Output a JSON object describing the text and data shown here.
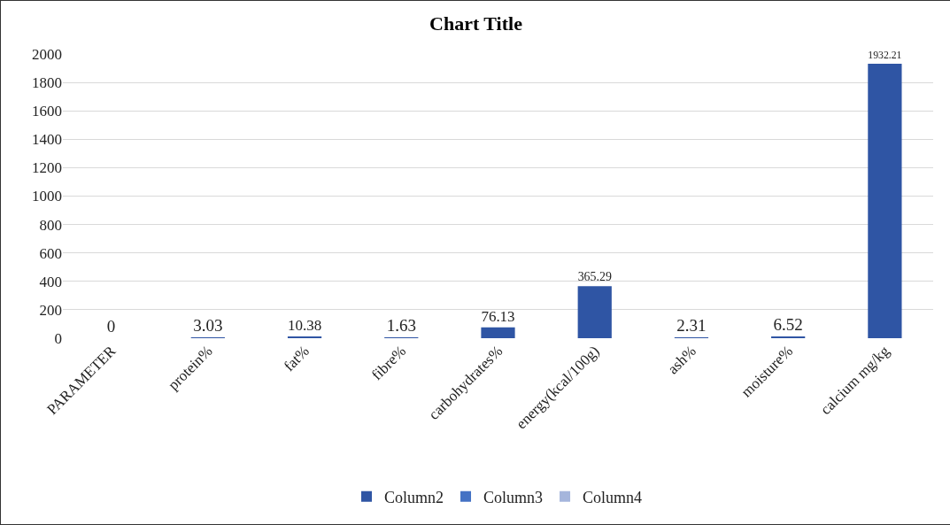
{
  "chart_data": {
    "type": "bar",
    "title": "Chart Title",
    "categories": [
      "PARAMETER",
      "protein%",
      "fat%",
      "fibre%",
      "carbohydrates%",
      "energy(kcal/100g)",
      "ash%",
      "moisture%",
      "calcium mg/kg"
    ],
    "series": [
      {
        "name": "Column2",
        "color": "#2f55a4",
        "values": [
          0,
          3.03,
          10.38,
          1.63,
          76.13,
          365.29,
          2.31,
          6.52,
          1932.21
        ]
      },
      {
        "name": "Column3",
        "color": "#4472c4",
        "values": [
          null,
          null,
          null,
          null,
          null,
          null,
          null,
          null,
          null
        ]
      },
      {
        "name": "Column4",
        "color": "#a5b5dc",
        "values": [
          null,
          null,
          null,
          null,
          null,
          null,
          null,
          null,
          null
        ]
      }
    ],
    "ylim": [
      0,
      2000
    ],
    "yticks": [
      0,
      200,
      400,
      600,
      800,
      1000,
      1200,
      1400,
      1600,
      1800,
      2000
    ],
    "grid": "y",
    "legend": "bottom",
    "data_labels": true
  }
}
